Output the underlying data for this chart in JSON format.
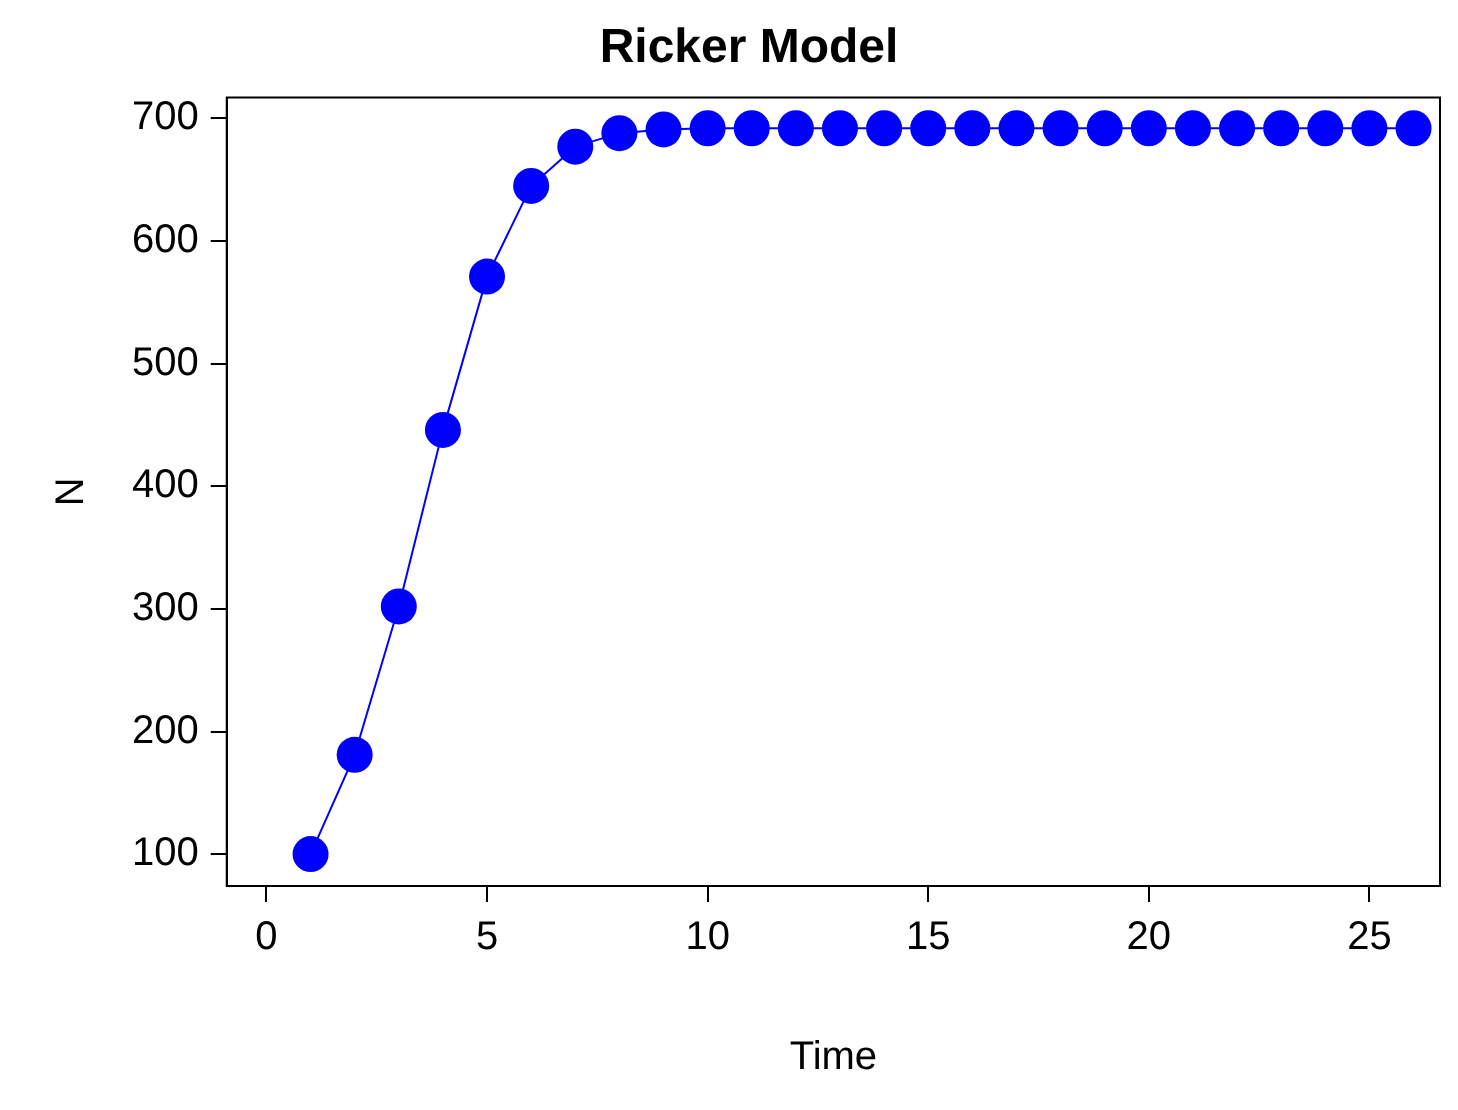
{
  "chart_data": {
    "type": "line",
    "title": "Ricker Model",
    "xlabel": "Time",
    "ylabel": "N",
    "x": [
      1,
      2,
      3,
      4,
      5,
      6,
      7,
      8,
      9,
      10,
      11,
      12,
      13,
      14,
      15,
      16,
      17,
      18,
      19,
      20,
      21,
      22,
      23,
      24,
      25,
      26
    ],
    "series": [
      {
        "color": "#0000ff",
        "values": [
          100,
          181,
          302,
          446,
          571,
          645,
          677,
          688,
          691,
          692,
          692,
          692,
          692,
          692,
          692,
          692,
          692,
          692,
          692,
          692,
          692,
          692,
          692,
          692,
          692,
          692
        ]
      }
    ],
    "xlim": [
      -0.9,
      26.6
    ],
    "xticks": [
      0,
      5,
      10,
      15,
      20,
      25
    ],
    "ylim": [
      74,
      717
    ],
    "yticks": [
      100,
      200,
      300,
      400,
      500,
      600,
      700
    ],
    "grid": false,
    "legend": false,
    "marker": "circle",
    "line_style": "solid"
  }
}
